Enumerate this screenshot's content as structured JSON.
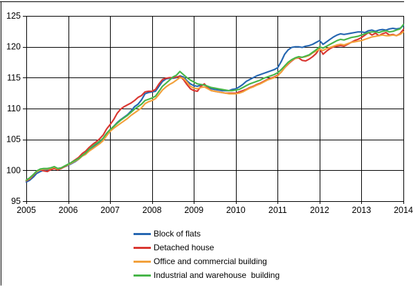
{
  "figure": {
    "background": "#ffffff",
    "border_color": "#000000"
  },
  "chart_data": {
    "type": "line",
    "title": "",
    "xlabel": "",
    "ylabel": "",
    "grid": true,
    "grid_color": "#000000",
    "legend_position": "bottom-center",
    "xlim": [
      2005,
      2014
    ],
    "ylim": [
      95,
      125
    ],
    "x_tick_years": [
      "2005",
      "2006",
      "2007",
      "2008",
      "2009",
      "2010",
      "2011",
      "2012",
      "2013",
      "2014"
    ],
    "y_ticks": [
      "95",
      "100",
      "105",
      "110",
      "115",
      "120",
      "125"
    ],
    "x_start_year": 2005,
    "points_per_year": 12,
    "series": [
      {
        "name": "Block of flats",
        "color": "#2667B1",
        "values": [
          98.1,
          98.4,
          98.9,
          99.5,
          99.8,
          100.0,
          100.1,
          100.3,
          100.5,
          100.3,
          100.4,
          100.6,
          100.8,
          101.1,
          101.4,
          101.8,
          102.3,
          102.6,
          103.2,
          103.7,
          104.1,
          104.5,
          105.0,
          105.9,
          106.6,
          107.1,
          107.7,
          108.2,
          108.6,
          109.0,
          109.6,
          110.3,
          110.7,
          111.4,
          112.4,
          112.6,
          112.7,
          112.8,
          113.6,
          114.4,
          114.8,
          114.9,
          114.9,
          115.0,
          115.3,
          115.1,
          114.5,
          114.0,
          113.7,
          113.6,
          113.8,
          113.9,
          113.5,
          113.2,
          113.1,
          113.0,
          112.9,
          112.9,
          112.9,
          113.1,
          113.2,
          113.5,
          113.9,
          114.4,
          114.7,
          115.0,
          115.3,
          115.5,
          115.7,
          115.9,
          116.1,
          116.3,
          116.6,
          117.6,
          118.8,
          119.5,
          119.9,
          120.0,
          120.0,
          119.9,
          120.1,
          120.2,
          120.4,
          120.7,
          121.0,
          120.4,
          120.8,
          121.2,
          121.6,
          121.9,
          122.1,
          122.0,
          122.1,
          122.2,
          122.3,
          122.4,
          122.4,
          122.3,
          122.6,
          122.7,
          122.5,
          122.7,
          122.8,
          122.7,
          122.9,
          123.0,
          122.9,
          123.0,
          123.4
        ]
      },
      {
        "name": "Detached house",
        "color": "#D93731",
        "values": [
          98.3,
          98.6,
          99.2,
          99.8,
          100.1,
          99.9,
          99.8,
          100.1,
          100.3,
          100.1,
          100.3,
          100.6,
          100.9,
          101.3,
          101.7,
          102.1,
          102.7,
          103.1,
          103.7,
          104.2,
          104.6,
          105.1,
          105.7,
          106.7,
          107.4,
          108.2,
          109.2,
          109.9,
          110.3,
          110.6,
          110.9,
          111.3,
          111.8,
          112.1,
          112.7,
          112.8,
          112.8,
          113.1,
          114.0,
          114.7,
          114.9,
          115.0,
          115.0,
          115.1,
          115.2,
          114.7,
          113.9,
          113.2,
          112.9,
          112.8,
          113.6,
          114.0,
          113.3,
          112.9,
          112.8,
          112.7,
          112.6,
          112.5,
          112.5,
          112.5,
          112.5,
          112.7,
          112.9,
          113.1,
          113.4,
          113.6,
          113.9,
          114.1,
          114.4,
          114.7,
          114.9,
          115.1,
          115.4,
          115.9,
          116.6,
          117.2,
          117.7,
          118.1,
          118.2,
          117.8,
          117.7,
          118.0,
          118.4,
          118.9,
          119.7,
          118.8,
          119.3,
          119.7,
          120.0,
          120.1,
          120.2,
          120.1,
          120.4,
          120.7,
          121.0,
          121.2,
          121.5,
          121.9,
          122.3,
          121.9,
          122.2,
          121.8,
          122.1,
          122.3,
          121.9,
          122.0,
          121.8,
          122.1,
          122.8
        ]
      },
      {
        "name": "Office and commercial building",
        "color": "#F2A13C",
        "values": [
          98.4,
          98.7,
          99.3,
          99.8,
          100.1,
          100.2,
          100.2,
          100.3,
          100.5,
          100.2,
          100.4,
          100.7,
          100.9,
          101.2,
          101.5,
          101.8,
          102.3,
          102.6,
          103.1,
          103.5,
          103.9,
          104.3,
          104.8,
          105.6,
          106.3,
          106.8,
          107.2,
          107.6,
          108.0,
          108.4,
          108.9,
          109.3,
          109.7,
          110.1,
          110.8,
          111.1,
          111.3,
          111.6,
          112.3,
          113.0,
          113.5,
          113.9,
          114.2,
          114.6,
          115.0,
          114.9,
          114.3,
          113.6,
          113.3,
          113.2,
          113.4,
          113.5,
          113.2,
          112.9,
          112.8,
          112.7,
          112.6,
          112.5,
          112.4,
          112.4,
          112.4,
          112.5,
          112.7,
          113.0,
          113.3,
          113.5,
          113.8,
          114.0,
          114.3,
          114.6,
          114.8,
          115.0,
          115.3,
          115.9,
          116.6,
          117.3,
          117.8,
          118.1,
          118.3,
          118.3,
          118.4,
          118.6,
          119.0,
          119.3,
          119.6,
          119.4,
          119.7,
          119.9,
          120.1,
          120.3,
          120.4,
          120.3,
          120.5,
          120.7,
          120.8,
          120.9,
          121.0,
          121.2,
          121.4,
          121.6,
          121.7,
          121.8,
          121.9,
          121.8,
          121.8,
          121.9,
          121.8,
          122.0,
          122.4
        ]
      },
      {
        "name": "Industrial and warehouse  building",
        "color": "#47B549",
        "values": [
          98.4,
          98.8,
          99.3,
          99.9,
          100.2,
          100.3,
          100.3,
          100.4,
          100.6,
          100.3,
          100.4,
          100.7,
          101.0,
          101.3,
          101.6,
          101.9,
          102.4,
          102.8,
          103.4,
          103.9,
          104.3,
          104.7,
          105.2,
          106.0,
          106.6,
          107.1,
          107.6,
          108.1,
          108.5,
          108.9,
          109.4,
          109.9,
          110.3,
          110.7,
          111.3,
          111.5,
          111.7,
          112.0,
          112.8,
          113.6,
          114.1,
          114.6,
          115.1,
          115.4,
          116.0,
          115.5,
          115.0,
          114.6,
          114.3,
          114.0,
          113.9,
          113.8,
          113.6,
          113.4,
          113.3,
          113.2,
          113.1,
          113.0,
          112.9,
          112.9,
          113.0,
          113.1,
          113.4,
          113.7,
          114.0,
          114.2,
          114.4,
          114.6,
          114.9,
          115.1,
          115.3,
          115.5,
          115.8,
          116.3,
          116.9,
          117.5,
          117.9,
          118.2,
          118.4,
          118.3,
          118.5,
          118.7,
          119.1,
          119.5,
          120.0,
          119.8,
          120.1,
          120.4,
          120.7,
          121.0,
          121.2,
          121.1,
          121.3,
          121.5,
          121.6,
          121.7,
          121.9,
          122.1,
          122.3,
          122.4,
          122.4,
          122.3,
          122.5,
          122.6,
          122.4,
          122.5,
          122.7,
          122.9,
          123.6
        ]
      }
    ]
  }
}
